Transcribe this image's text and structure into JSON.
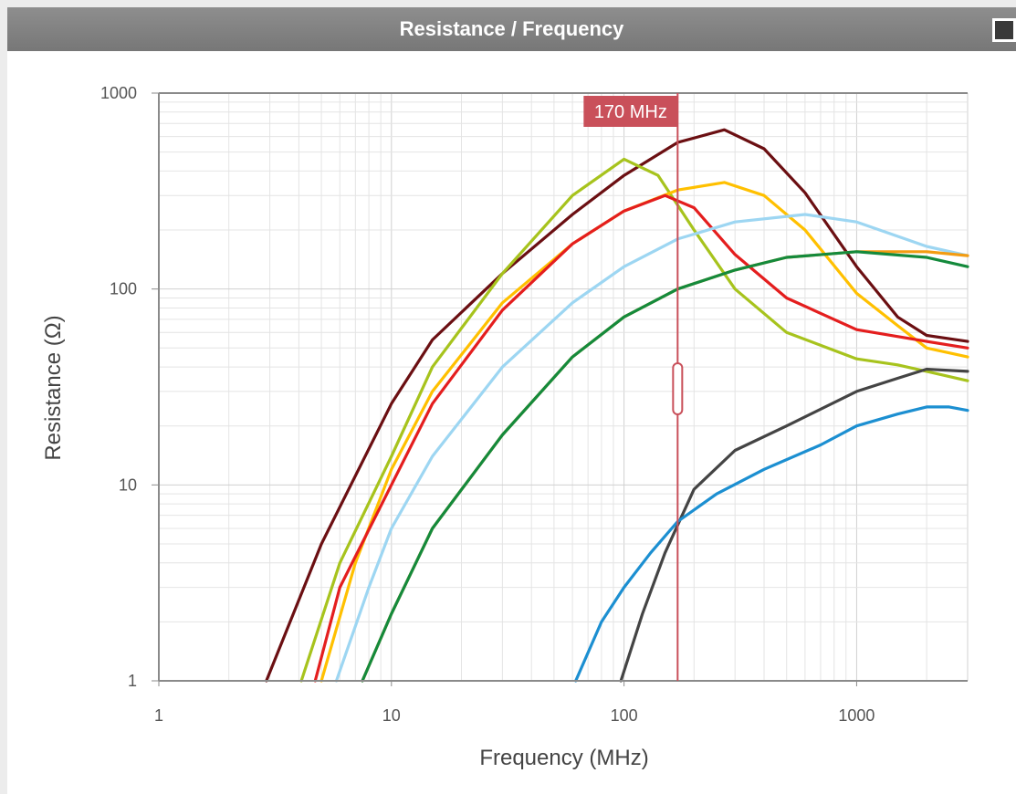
{
  "window": {
    "title": "Resistance / Frequency",
    "maximize_icon": "maximize-icon"
  },
  "chart_data": {
    "type": "line",
    "title": "Resistance / Frequency",
    "xlabel": "Frequency (MHz)",
    "ylabel": "Resistance (Ω)",
    "x_scale": "log",
    "y_scale": "log",
    "xlim": [
      1,
      3000
    ],
    "ylim": [
      1,
      1000
    ],
    "x_ticks": [
      1,
      10,
      100,
      1000
    ],
    "x_tick_labels": [
      "1",
      "10",
      "100",
      "1000"
    ],
    "y_ticks": [
      1,
      10,
      100,
      1000
    ],
    "y_tick_labels": [
      "1",
      "10",
      "100",
      "1000"
    ],
    "grid": true,
    "cursor": {
      "x": 170,
      "label": "170 MHz",
      "color": "#c9505a"
    },
    "series": [
      {
        "color": "#6b0f12",
        "x": [
          2.9,
          5,
          10,
          15,
          30,
          60,
          100,
          170,
          270,
          400,
          600,
          1000,
          1500,
          2000,
          3000
        ],
        "y": [
          1,
          5,
          26,
          55,
          120,
          240,
          380,
          560,
          650,
          520,
          310,
          130,
          72,
          58,
          54
        ]
      },
      {
        "color": "#a7c31d",
        "x": [
          4.1,
          6,
          10,
          15,
          30,
          60,
          100,
          140,
          200,
          300,
          500,
          1000,
          1500,
          2000,
          3000
        ],
        "y": [
          1,
          4,
          14,
          40,
          120,
          300,
          460,
          380,
          200,
          100,
          60,
          44,
          41,
          38,
          34
        ]
      },
      {
        "color": "#ffc000",
        "x": [
          5,
          7,
          10,
          15,
          30,
          60,
          100,
          170,
          270,
          400,
          600,
          1000,
          1500,
          2000,
          3000
        ],
        "y": [
          1,
          4,
          12,
          30,
          85,
          170,
          250,
          320,
          350,
          300,
          200,
          95,
          65,
          50,
          45
        ]
      },
      {
        "color": "#e41e1e",
        "x": [
          4.7,
          6,
          10,
          15,
          30,
          60,
          100,
          150,
          200,
          300,
          500,
          1000,
          2000,
          3000
        ],
        "y": [
          1,
          3,
          10,
          26,
          78,
          170,
          250,
          300,
          260,
          150,
          90,
          62,
          54,
          50
        ]
      },
      {
        "color": "#9dd6f2",
        "x": [
          5.8,
          8,
          10,
          15,
          30,
          60,
          100,
          170,
          300,
          600,
          1000,
          2000,
          3000
        ],
        "y": [
          1,
          3,
          6,
          14,
          40,
          85,
          130,
          180,
          220,
          240,
          220,
          165,
          148
        ]
      },
      {
        "color": "#f39c12",
        "x": [
          7.5,
          10,
          15,
          30,
          60,
          100,
          170,
          300,
          500,
          1000,
          2000,
          3000
        ],
        "y": [
          1,
          2.2,
          6,
          18,
          45,
          72,
          100,
          125,
          145,
          155,
          155,
          148
        ]
      },
      {
        "color": "#148a3c",
        "x": [
          7.5,
          10,
          15,
          30,
          60,
          100,
          170,
          300,
          500,
          1000,
          2000,
          3000
        ],
        "y": [
          1,
          2.2,
          6,
          18,
          45,
          72,
          100,
          125,
          145,
          155,
          145,
          130
        ]
      },
      {
        "color": "#444444",
        "x": [
          97,
          120,
          150,
          200,
          300,
          500,
          1000,
          1500,
          2000,
          3000
        ],
        "y": [
          1,
          2.2,
          4.5,
          9.5,
          15,
          20,
          30,
          35,
          39,
          38
        ]
      },
      {
        "color": "#1c8fd1",
        "x": [
          62,
          80,
          100,
          130,
          170,
          250,
          400,
          700,
          1000,
          1500,
          2000,
          2500,
          3000
        ],
        "y": [
          1,
          2,
          3,
          4.5,
          6.5,
          9,
          12,
          16,
          20,
          23,
          25,
          25,
          24
        ]
      }
    ]
  }
}
